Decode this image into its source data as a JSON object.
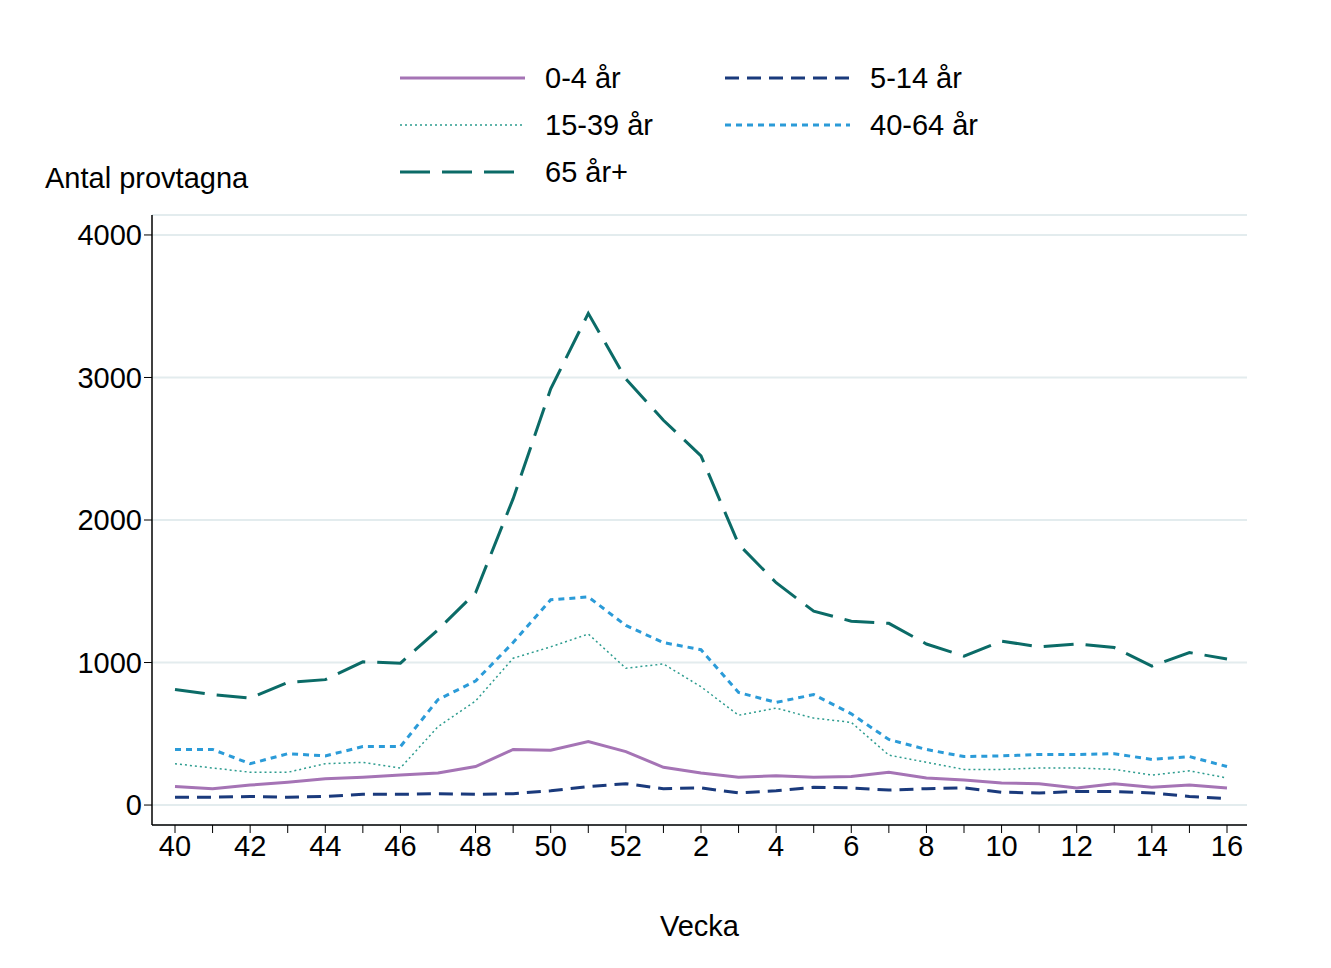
{
  "chart_data": {
    "type": "line",
    "y_label": "Antal provtagna",
    "x_label": "Vecka",
    "categories": [
      "40",
      null,
      "42",
      null,
      "44",
      null,
      "46",
      null,
      "48",
      null,
      "50",
      null,
      "52",
      null,
      "2",
      null,
      "4",
      null,
      "6",
      null,
      "8",
      null,
      "10",
      null,
      "12",
      null,
      "14",
      null,
      "16"
    ],
    "ylim": [
      -140,
      4140
    ],
    "yticks": [
      0,
      1000,
      2000,
      3000,
      4000
    ],
    "grid": true,
    "series": [
      {
        "name": "0-4 år",
        "color": "#a574b5",
        "line_style": "solid",
        "values": [
          130,
          115,
          140,
          160,
          185,
          195,
          210,
          225,
          270,
          390,
          385,
          445,
          375,
          265,
          225,
          195,
          205,
          195,
          200,
          230,
          190,
          175,
          155,
          150,
          120,
          150,
          125,
          140,
          120
        ]
      },
      {
        "name": "5-14 år",
        "color": "#1a3a7c",
        "line_style": "dashed",
        "values": [
          55,
          55,
          60,
          55,
          60,
          75,
          75,
          80,
          75,
          80,
          100,
          130,
          150,
          115,
          120,
          85,
          100,
          125,
          120,
          105,
          115,
          120,
          90,
          85,
          95,
          95,
          85,
          60,
          45
        ]
      },
      {
        "name": "15-39 år",
        "color": "#2d9c8f",
        "line_style": "dotted",
        "values": [
          290,
          260,
          230,
          230,
          290,
          300,
          260,
          550,
          730,
          1030,
          1110,
          1200,
          960,
          990,
          830,
          630,
          680,
          610,
          580,
          350,
          300,
          250,
          250,
          260,
          260,
          250,
          210,
          240,
          190
        ]
      },
      {
        "name": "40-64 år",
        "color": "#2b9bd8",
        "line_style": "short_dash",
        "values": [
          390,
          390,
          290,
          360,
          345,
          410,
          410,
          740,
          870,
          1140,
          1440,
          1460,
          1260,
          1140,
          1090,
          790,
          720,
          775,
          640,
          460,
          390,
          340,
          345,
          355,
          355,
          360,
          320,
          340,
          270
        ]
      },
      {
        "name": "65 år+",
        "color": "#0b6b67",
        "line_style": "long_dash",
        "values": [
          810,
          775,
          750,
          860,
          880,
          1005,
          995,
          1230,
          1490,
          2150,
          2920,
          3450,
          2990,
          2700,
          2450,
          1830,
          1560,
          1360,
          1290,
          1275,
          1130,
          1045,
          1150,
          1110,
          1130,
          1105,
          975,
          1070,
          1025
        ]
      }
    ]
  }
}
